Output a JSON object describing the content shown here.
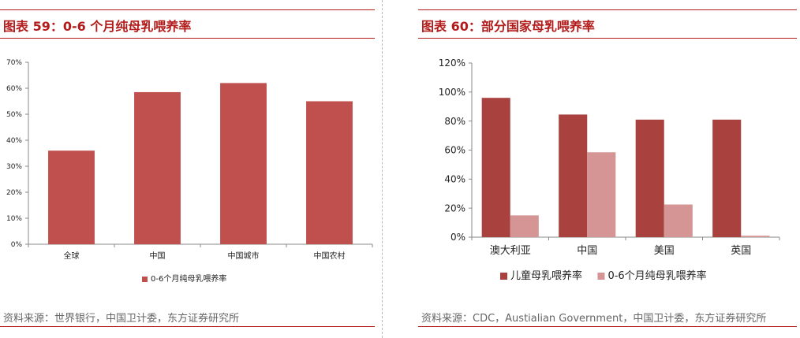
{
  "left": {
    "title": "图表 59：0-6 个月纯母乳喂养率",
    "source": "资料来源：世界银行，中国卫计委，东方证券研究所",
    "chart_data": {
      "type": "bar",
      "categories": [
        "全球",
        "中国",
        "中国城市",
        "中国农村"
      ],
      "series": [
        {
          "name": "0-6个月纯母乳喂养率",
          "values": [
            36,
            58.5,
            62,
            55
          ],
          "color": "#c0504d"
        }
      ],
      "ylim": [
        0,
        70
      ],
      "yticks": [
        0,
        10,
        20,
        30,
        40,
        50,
        60,
        70
      ],
      "tick_format": "percent",
      "grid": false,
      "legend": "bottom"
    }
  },
  "right": {
    "title": "图表 60：部分国家母乳喂养率",
    "source": "资料来源：CDC，Austialian Government，中国卫计委，东方证券研究所",
    "chart_data": {
      "type": "bar",
      "categories": [
        "澳大利亚",
        "中国",
        "美国",
        "英国"
      ],
      "series": [
        {
          "name": "儿童母乳喂养率",
          "values": [
            96,
            84.5,
            81,
            81
          ],
          "color": "#a9413f"
        },
        {
          "name": "0-6个月纯母乳喂养率",
          "values": [
            15,
            58.5,
            22.5,
            1
          ],
          "color": "#d49594"
        }
      ],
      "ylim": [
        0,
        120
      ],
      "yticks": [
        0,
        20,
        40,
        60,
        80,
        100,
        120
      ],
      "tick_format": "percent",
      "grid": false,
      "legend": "bottom"
    }
  }
}
